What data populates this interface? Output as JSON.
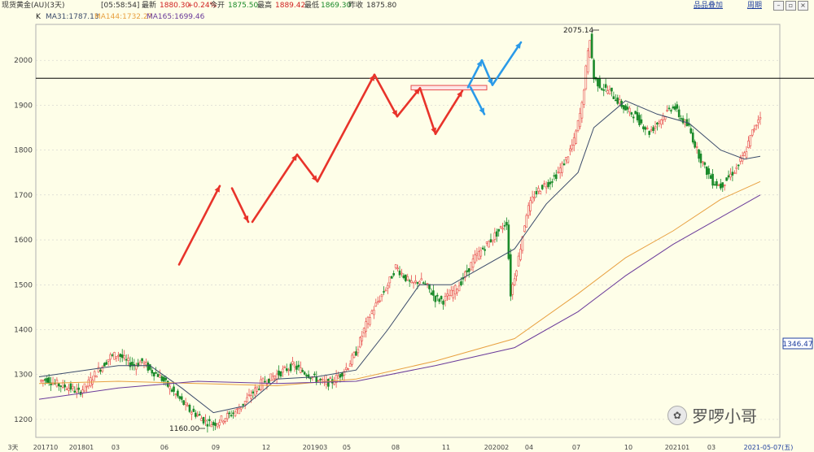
{
  "topbar": {
    "symbol": "现货黄金(AU)(3天)",
    "time": "[05:58:54]",
    "latest_label": "最新",
    "latest_value": "1880.30",
    "change": "+0.24%",
    "open_label": "今开",
    "open_value": "1875.50",
    "high_label": "最高",
    "high_value": "1889.42",
    "low_label": "最低",
    "low_value": "1869.30",
    "prev_label": "昨收",
    "prev_value": "1875.80",
    "overlay_link": "品品叠加",
    "period_link": "周期"
  },
  "ma_bar": {
    "k_label": "K",
    "ma31": "MA31:1787.13",
    "ma144": "MA144:1732.27",
    "ma165": "MA165:1699.46"
  },
  "colors": {
    "background": "#fefee8",
    "up": "#e84c4c",
    "down": "#1a8a2a",
    "ma31": "#3a4a6a",
    "ma144": "#e8a040",
    "ma165": "#6a3a9a",
    "arrow_red": "#e8332a",
    "arrow_blue": "#2a9ae8",
    "resistance": "#000000",
    "grid": "#c8c8c8"
  },
  "watermark": {
    "text": "罗啰小哥",
    "icon": "wechat-icon"
  },
  "chart_data": {
    "type": "candlestick",
    "period": "3天",
    "ylim": [
      1160,
      2080
    ],
    "y_ticks": [
      1200,
      1300,
      1400,
      1500,
      1600,
      1700,
      1800,
      1900,
      2000
    ],
    "x_ticks": [
      "3天",
      "201710",
      "201801",
      "03",
      "06",
      "09",
      "12",
      "201903",
      "05",
      "08",
      "11",
      "202002",
      "04",
      "07",
      "10",
      "202101",
      "03",
      "2021-05-07(五)"
    ],
    "annotations": [
      {
        "text": "2075.14",
        "note": "high"
      },
      {
        "text": "1160.00",
        "note": "low"
      },
      {
        "text": "1346.47",
        "note": "price box"
      }
    ],
    "resistance_level": 1960,
    "close_path": [
      [
        0,
        1285
      ],
      [
        4,
        1290
      ],
      [
        8,
        1280
      ],
      [
        12,
        1275
      ],
      [
        16,
        1270
      ],
      [
        20,
        1260
      ],
      [
        24,
        1275
      ],
      [
        28,
        1300
      ],
      [
        32,
        1320
      ],
      [
        36,
        1340
      ],
      [
        40,
        1345
      ],
      [
        44,
        1330
      ],
      [
        48,
        1320
      ],
      [
        52,
        1330
      ],
      [
        56,
        1310
      ],
      [
        60,
        1300
      ],
      [
        64,
        1280
      ],
      [
        68,
        1260
      ],
      [
        72,
        1240
      ],
      [
        76,
        1220
      ],
      [
        80,
        1210
      ],
      [
        84,
        1195
      ],
      [
        88,
        1190
      ],
      [
        92,
        1200
      ],
      [
        96,
        1210
      ],
      [
        100,
        1220
      ],
      [
        104,
        1240
      ],
      [
        108,
        1260
      ],
      [
        112,
        1280
      ],
      [
        116,
        1290
      ],
      [
        120,
        1300
      ],
      [
        124,
        1310
      ],
      [
        128,
        1320
      ],
      [
        132,
        1310
      ],
      [
        136,
        1300
      ],
      [
        140,
        1290
      ],
      [
        144,
        1280
      ],
      [
        148,
        1285
      ],
      [
        152,
        1300
      ],
      [
        156,
        1320
      ],
      [
        160,
        1350
      ],
      [
        164,
        1400
      ],
      [
        168,
        1440
      ],
      [
        172,
        1470
      ],
      [
        176,
        1500
      ],
      [
        180,
        1540
      ],
      [
        184,
        1520
      ],
      [
        188,
        1500
      ],
      [
        192,
        1510
      ],
      [
        196,
        1495
      ],
      [
        200,
        1470
      ],
      [
        204,
        1465
      ],
      [
        208,
        1480
      ],
      [
        212,
        1500
      ],
      [
        216,
        1530
      ],
      [
        220,
        1560
      ],
      [
        224,
        1580
      ],
      [
        228,
        1600
      ],
      [
        232,
        1620
      ],
      [
        236,
        1640
      ],
      [
        238,
        1480
      ],
      [
        242,
        1560
      ],
      [
        246,
        1660
      ],
      [
        250,
        1700
      ],
      [
        254,
        1720
      ],
      [
        258,
        1730
      ],
      [
        262,
        1750
      ],
      [
        266,
        1780
      ],
      [
        270,
        1820
      ],
      [
        274,
        1900
      ],
      [
        276,
        1980
      ],
      [
        278,
        2050
      ],
      [
        280,
        1960
      ],
      [
        284,
        1940
      ],
      [
        288,
        1930
      ],
      [
        292,
        1910
      ],
      [
        296,
        1890
      ],
      [
        300,
        1880
      ],
      [
        304,
        1860
      ],
      [
        308,
        1840
      ],
      [
        312,
        1860
      ],
      [
        316,
        1880
      ],
      [
        320,
        1900
      ],
      [
        324,
        1870
      ],
      [
        328,
        1850
      ],
      [
        332,
        1800
      ],
      [
        336,
        1760
      ],
      [
        340,
        1730
      ],
      [
        344,
        1720
      ],
      [
        348,
        1740
      ],
      [
        352,
        1760
      ],
      [
        356,
        1790
      ],
      [
        360,
        1840
      ],
      [
        364,
        1880
      ]
    ],
    "ma_lines": [
      {
        "name": "MA31",
        "points": [
          [
            0,
            1295
          ],
          [
            40,
            1320
          ],
          [
            56,
            1320
          ],
          [
            72,
            1270
          ],
          [
            88,
            1215
          ],
          [
            104,
            1230
          ],
          [
            120,
            1290
          ],
          [
            140,
            1295
          ],
          [
            160,
            1310
          ],
          [
            176,
            1400
          ],
          [
            192,
            1500
          ],
          [
            208,
            1500
          ],
          [
            224,
            1540
          ],
          [
            240,
            1580
          ],
          [
            256,
            1680
          ],
          [
            272,
            1750
          ],
          [
            280,
            1850
          ],
          [
            296,
            1910
          ],
          [
            312,
            1880
          ],
          [
            328,
            1860
          ],
          [
            344,
            1800
          ],
          [
            356,
            1780
          ],
          [
            364,
            1786
          ]
        ]
      },
      {
        "name": "MA144",
        "points": [
          [
            0,
            1280
          ],
          [
            40,
            1285
          ],
          [
            80,
            1280
          ],
          [
            120,
            1275
          ],
          [
            160,
            1290
          ],
          [
            200,
            1330
          ],
          [
            240,
            1380
          ],
          [
            272,
            1480
          ],
          [
            296,
            1560
          ],
          [
            320,
            1620
          ],
          [
            344,
            1690
          ],
          [
            364,
            1730
          ]
        ]
      },
      {
        "name": "MA165",
        "points": [
          [
            0,
            1245
          ],
          [
            40,
            1270
          ],
          [
            80,
            1285
          ],
          [
            120,
            1280
          ],
          [
            160,
            1285
          ],
          [
            200,
            1320
          ],
          [
            240,
            1360
          ],
          [
            272,
            1440
          ],
          [
            296,
            1520
          ],
          [
            320,
            1590
          ],
          [
            344,
            1650
          ],
          [
            364,
            1700
          ]
        ]
      }
    ],
    "red_arrows": [
      [
        [
          0.22,
          1545
        ],
        [
          0.27,
          1720
        ]
      ],
      [
        [
          0.285,
          1715
        ],
        [
          0.305,
          1640
        ]
      ],
      [
        [
          0.31,
          1640
        ],
        [
          0.365,
          1790
        ]
      ],
      [
        [
          0.365,
          1790
        ],
        [
          0.39,
          1730
        ]
      ],
      [
        [
          0.39,
          1730
        ],
        [
          0.46,
          1968
        ]
      ],
      [
        [
          0.46,
          1968
        ],
        [
          0.488,
          1875
        ]
      ],
      [
        [
          0.488,
          1875
        ],
        [
          0.516,
          1938
        ]
      ],
      [
        [
          0.516,
          1938
        ],
        [
          0.535,
          1836
        ]
      ],
      [
        [
          0.535,
          1836
        ],
        [
          0.568,
          1932
        ]
      ]
    ],
    "blue_arrows": [
      [
        [
          0.575,
          1940
        ],
        [
          0.592,
          2000
        ]
      ],
      [
        [
          0.592,
          2000
        ],
        [
          0.605,
          1945
        ]
      ],
      [
        [
          0.605,
          1945
        ],
        [
          0.64,
          2040
        ]
      ],
      [
        [
          0.578,
          1940
        ],
        [
          0.595,
          1880
        ]
      ]
    ],
    "box": {
      "x_start": 0.505,
      "x_end": 0.598,
      "y_low": 1934,
      "y_high": 1944
    }
  }
}
